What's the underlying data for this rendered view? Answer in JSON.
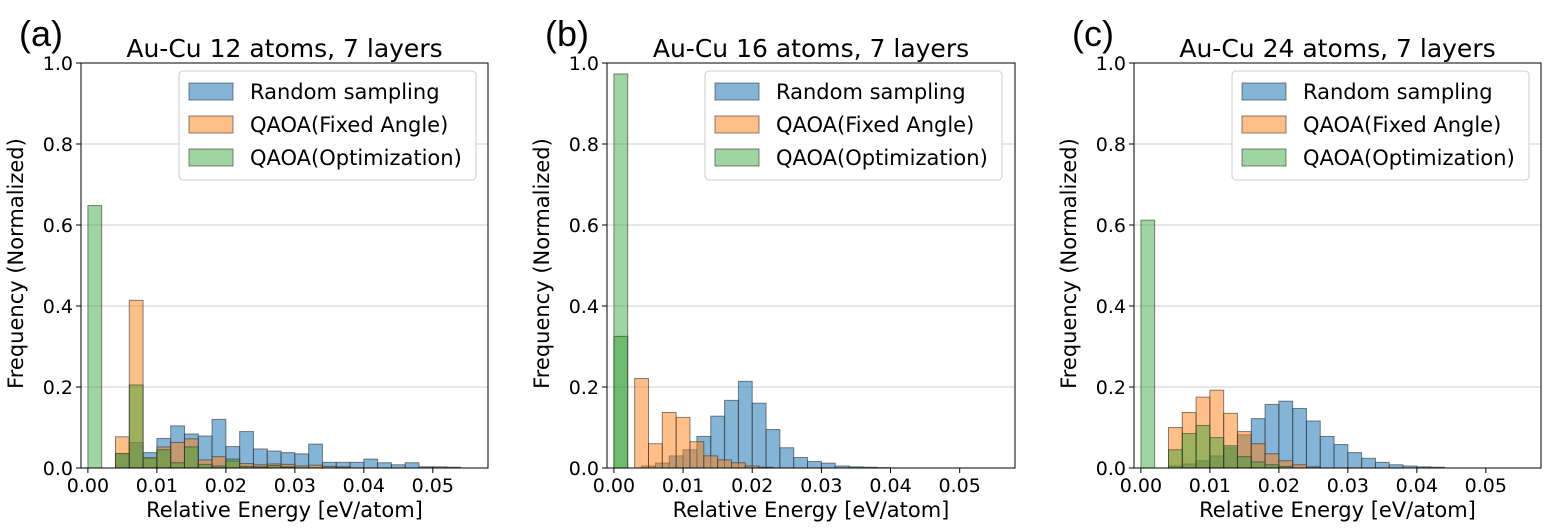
{
  "chart_data": [
    {
      "type": "bar",
      "panel_label": "(a)",
      "title": "Au-Cu 12 atoms, 7 layers",
      "xlabel": "Relative Energy [eV/atom]",
      "ylabel": "Frequency (Normalized)",
      "xlim": [
        -0.001,
        0.058
      ],
      "ylim": [
        0,
        1.0
      ],
      "bin_width": 0.002,
      "xticks": [
        "0.00",
        "0.01",
        "0.02",
        "0.03",
        "0.04",
        "0.05"
      ],
      "yticks": [
        "0.0",
        "0.2",
        "0.4",
        "0.6",
        "0.8",
        "1.0"
      ],
      "grid": "y",
      "legend": [
        "Random sampling",
        "QAOA(Fixed Angle)",
        "QAOA(Optimization)"
      ],
      "series": [
        {
          "name": "Random sampling",
          "color": "#1f77b4",
          "bins": [
            [
              0.0,
              0.0
            ],
            [
              0.004,
              0.035
            ],
            [
              0.006,
              0.063
            ],
            [
              0.008,
              0.038
            ],
            [
              0.01,
              0.073
            ],
            [
              0.012,
              0.104
            ],
            [
              0.014,
              0.084
            ],
            [
              0.016,
              0.079
            ],
            [
              0.018,
              0.12
            ],
            [
              0.02,
              0.053
            ],
            [
              0.022,
              0.09
            ],
            [
              0.024,
              0.047
            ],
            [
              0.026,
              0.042
            ],
            [
              0.028,
              0.038
            ],
            [
              0.03,
              0.035
            ],
            [
              0.032,
              0.059
            ],
            [
              0.034,
              0.014
            ],
            [
              0.036,
              0.014
            ],
            [
              0.038,
              0.014
            ],
            [
              0.04,
              0.022
            ],
            [
              0.042,
              0.013
            ],
            [
              0.044,
              0.008
            ],
            [
              0.046,
              0.013
            ],
            [
              0.048,
              0.003
            ],
            [
              0.05,
              0.003
            ],
            [
              0.052,
              0.002
            ]
          ]
        },
        {
          "name": "QAOA(Fixed Angle)",
          "color": "#ff7f0e",
          "bins": [
            [
              0.0,
              0.0
            ],
            [
              0.004,
              0.077
            ],
            [
              0.006,
              0.414
            ],
            [
              0.008,
              0.025
            ],
            [
              0.01,
              0.052
            ],
            [
              0.012,
              0.063
            ],
            [
              0.014,
              0.072
            ],
            [
              0.016,
              0.02
            ],
            [
              0.018,
              0.028
            ],
            [
              0.02,
              0.017
            ],
            [
              0.022,
              0.011
            ],
            [
              0.024,
              0.008
            ],
            [
              0.026,
              0.01
            ],
            [
              0.028,
              0.009
            ],
            [
              0.03,
              0.005
            ],
            [
              0.032,
              0.007
            ],
            [
              0.034,
              0.004
            ],
            [
              0.036,
              0.003
            ]
          ]
        },
        {
          "name": "QAOA(Optimization)",
          "color": "#2ca02c",
          "bins": [
            [
              0.0,
              0.648
            ],
            [
              0.004,
              0.036
            ],
            [
              0.006,
              0.205
            ],
            [
              0.008,
              0.025
            ],
            [
              0.01,
              0.045
            ],
            [
              0.012,
              0.013
            ],
            [
              0.014,
              0.052
            ],
            [
              0.016,
              0.009
            ],
            [
              0.018,
              0.005
            ],
            [
              0.02,
              0.022
            ],
            [
              0.022,
              0.004
            ],
            [
              0.024,
              0.003
            ],
            [
              0.026,
              0.006
            ],
            [
              0.028,
              0.003
            ]
          ]
        }
      ]
    },
    {
      "type": "bar",
      "panel_label": "(b)",
      "title": "Au-Cu 16 atoms, 7 layers",
      "xlabel": "Relative Energy [eV/atom]",
      "ylabel": "Frequency (Normalized)",
      "xlim": [
        -0.001,
        0.058
      ],
      "ylim": [
        0,
        1.0
      ],
      "bin_width": 0.002,
      "xticks": [
        "0.00",
        "0.01",
        "0.02",
        "0.03",
        "0.04",
        "0.05"
      ],
      "yticks": [
        "0.0",
        "0.2",
        "0.4",
        "0.6",
        "0.8",
        "1.0"
      ],
      "grid": "y",
      "legend": [
        "Random sampling",
        "QAOA(Fixed Angle)",
        "QAOA(Optimization)"
      ],
      "series": [
        {
          "name": "Random sampling",
          "color": "#1f77b4",
          "bins": [
            [
              0.0,
              0.0
            ],
            [
              0.004,
              0.005
            ],
            [
              0.006,
              0.012
            ],
            [
              0.008,
              0.03
            ],
            [
              0.01,
              0.045
            ],
            [
              0.012,
              0.078
            ],
            [
              0.014,
              0.128
            ],
            [
              0.016,
              0.167
            ],
            [
              0.018,
              0.214
            ],
            [
              0.02,
              0.16
            ],
            [
              0.022,
              0.095
            ],
            [
              0.024,
              0.05
            ],
            [
              0.026,
              0.026
            ],
            [
              0.028,
              0.016
            ],
            [
              0.03,
              0.012
            ],
            [
              0.032,
              0.005
            ],
            [
              0.034,
              0.003
            ],
            [
              0.036,
              0.002
            ],
            [
              0.038,
              0.001
            ]
          ]
        },
        {
          "name": "QAOA(Fixed Angle)",
          "color": "#ff7f0e",
          "bins": [
            [
              0.0,
              0.0
            ],
            [
              0.003,
              0.221
            ],
            [
              0.005,
              0.06
            ],
            [
              0.007,
              0.137
            ],
            [
              0.009,
              0.125
            ],
            [
              0.011,
              0.065
            ],
            [
              0.013,
              0.03
            ],
            [
              0.015,
              0.02
            ],
            [
              0.017,
              0.013
            ],
            [
              0.019,
              0.005
            ],
            [
              0.021,
              0.002
            ]
          ]
        },
        {
          "name": "QAOA(Optimization)",
          "color": "#2ca02c",
          "bins": [
            [
              0.0,
              0.973
            ],
            [
              0.002,
              0.0
            ]
          ]
        },
        {
          "name": "QAOA(Optimization) overlap",
          "color": "#2ca02c",
          "bins": [
            [
              0.0,
              0.325
            ]
          ]
        }
      ]
    },
    {
      "type": "bar",
      "panel_label": "(c)",
      "title": "Au-Cu 24 atoms, 7 layers",
      "xlabel": "Relative Energy [eV/atom]",
      "ylabel": "Frequency (Normalized)",
      "xlim": [
        -0.001,
        0.058
      ],
      "ylim": [
        0,
        1.0
      ],
      "bin_width": 0.002,
      "xticks": [
        "0.00",
        "0.01",
        "0.02",
        "0.03",
        "0.04",
        "0.05"
      ],
      "yticks": [
        "0.0",
        "0.2",
        "0.4",
        "0.6",
        "0.8",
        "1.0"
      ],
      "grid": "y",
      "legend": [
        "Random sampling",
        "QAOA(Fixed Angle)",
        "QAOA(Optimization)"
      ],
      "series": [
        {
          "name": "Random sampling",
          "color": "#1f77b4",
          "bins": [
            [
              0.0,
              0.0
            ],
            [
              0.004,
              0.005
            ],
            [
              0.006,
              0.01
            ],
            [
              0.008,
              0.018
            ],
            [
              0.01,
              0.03
            ],
            [
              0.012,
              0.05
            ],
            [
              0.014,
              0.082
            ],
            [
              0.016,
              0.122
            ],
            [
              0.018,
              0.157
            ],
            [
              0.02,
              0.165
            ],
            [
              0.022,
              0.147
            ],
            [
              0.024,
              0.116
            ],
            [
              0.026,
              0.078
            ],
            [
              0.028,
              0.058
            ],
            [
              0.03,
              0.038
            ],
            [
              0.032,
              0.024
            ],
            [
              0.034,
              0.014
            ],
            [
              0.036,
              0.008
            ],
            [
              0.038,
              0.005
            ],
            [
              0.04,
              0.003
            ],
            [
              0.042,
              0.002
            ]
          ]
        },
        {
          "name": "QAOA(Fixed Angle)",
          "color": "#ff7f0e",
          "bins": [
            [
              0.0,
              0.0
            ],
            [
              0.004,
              0.1
            ],
            [
              0.006,
              0.137
            ],
            [
              0.008,
              0.175
            ],
            [
              0.01,
              0.192
            ],
            [
              0.012,
              0.135
            ],
            [
              0.014,
              0.09
            ],
            [
              0.016,
              0.06
            ],
            [
              0.018,
              0.035
            ],
            [
              0.02,
              0.018
            ],
            [
              0.022,
              0.008
            ],
            [
              0.024,
              0.003
            ]
          ]
        },
        {
          "name": "QAOA(Optimization)",
          "color": "#2ca02c",
          "bins": [
            [
              0.0,
              0.612
            ],
            [
              0.004,
              0.045
            ],
            [
              0.006,
              0.085
            ],
            [
              0.008,
              0.105
            ],
            [
              0.01,
              0.075
            ],
            [
              0.012,
              0.055
            ],
            [
              0.014,
              0.028
            ],
            [
              0.016,
              0.015
            ],
            [
              0.018,
              0.008
            ],
            [
              0.02,
              0.004
            ]
          ]
        }
      ]
    }
  ]
}
